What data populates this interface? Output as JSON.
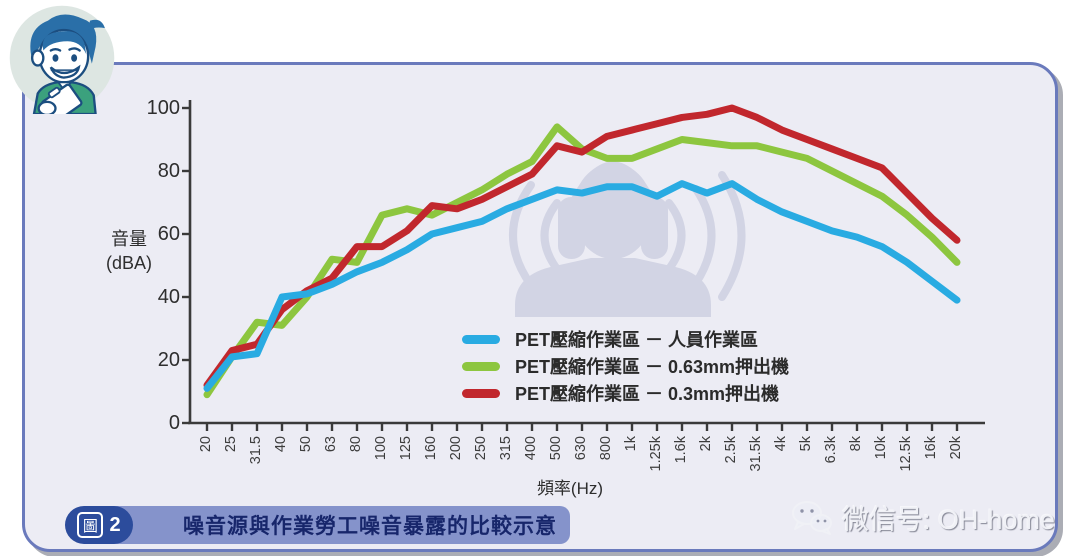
{
  "chart_data": {
    "type": "line",
    "title": "",
    "xlabel": "頻率(Hz)",
    "ylabel_line1": "音量",
    "ylabel_line2": "(dBA)",
    "grid": false,
    "legend_position": "inside-bottom-center",
    "ylim": [
      0,
      100
    ],
    "yticks": [
      0,
      20,
      40,
      60,
      80,
      100
    ],
    "categories": [
      "20",
      "25",
      "31.5",
      "40",
      "50",
      "63",
      "80",
      "100",
      "125",
      "160",
      "200",
      "250",
      "315",
      "400",
      "500",
      "630",
      "800",
      "1k",
      "1.25k",
      "1.6k",
      "2k",
      "2.5k",
      "31.5k",
      "4k",
      "5k",
      "6.3k",
      "8k",
      "10k",
      "12.5k",
      "16k",
      "20k"
    ],
    "series": [
      {
        "name": "PET壓縮作業區 － 人員作業區",
        "color": "#29abe2",
        "values": [
          11,
          21,
          22,
          40,
          41,
          44,
          48,
          51,
          55,
          60,
          62,
          64,
          68,
          71,
          74,
          73,
          75,
          75,
          72,
          76,
          73,
          76,
          71,
          67,
          64,
          61,
          59,
          56,
          51,
          45,
          39
        ]
      },
      {
        "name": "PET壓縮作業區 － 0.63mm押出機",
        "color": "#8dc63f",
        "values": [
          9,
          21,
          32,
          31,
          40,
          52,
          51,
          66,
          68,
          66,
          70,
          74,
          79,
          83,
          94,
          87,
          84,
          84,
          87,
          90,
          89,
          88,
          88,
          86,
          84,
          80,
          76,
          72,
          66,
          59,
          51
        ]
      },
      {
        "name": "PET壓縮作業區 － 0.3mm押出機",
        "color": "#c1272d",
        "values": [
          12,
          23,
          25,
          36,
          42,
          46,
          56,
          56,
          61,
          69,
          68,
          71,
          75,
          79,
          88,
          86,
          91,
          93,
          95,
          97,
          98,
          100,
          97,
          93,
          90,
          87,
          84,
          81,
          73,
          65,
          58
        ]
      }
    ]
  },
  "caption": {
    "badge_prefix": "圖",
    "badge_number": "2",
    "text": "噪音源與作業勞工噪音暴露的比較示意"
  },
  "watermark": {
    "icon": "wechat-icon",
    "text": "微信号: OH-home"
  },
  "icons": {
    "mascot": "cartoon-man-with-clipboard",
    "center_silhouette": "worker-wearing-ear-muffs"
  },
  "colors": {
    "panel_bg": "#ececf4",
    "panel_border": "#6a7abc",
    "caption_bar": "#8593cb",
    "caption_badge": "#2c4c9c",
    "caption_text": "#17266b",
    "axis": "#3a3a3a",
    "silhouette": "#d2d4e4",
    "series_blue": "#29abe2",
    "series_green": "#8dc63f",
    "series_red": "#c1272d"
  }
}
